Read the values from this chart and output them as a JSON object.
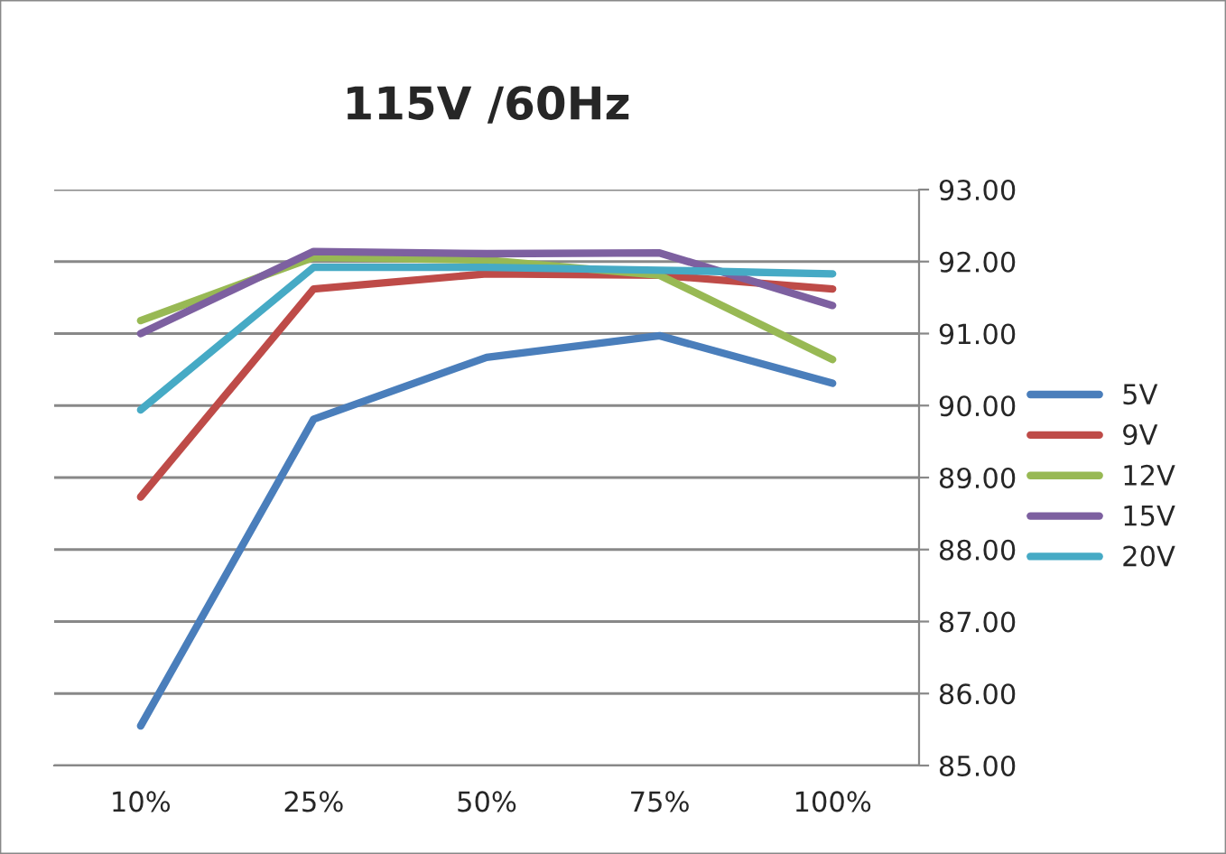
{
  "chart_data": {
    "type": "line",
    "title": "115V /60Hz",
    "categories": [
      "10%",
      "25%",
      "50%",
      "75%",
      "100%"
    ],
    "series": [
      {
        "name": "5V",
        "color": "#4a7ebb",
        "values": [
          85.55,
          89.81,
          90.67,
          90.97,
          90.31
        ]
      },
      {
        "name": "9V",
        "color": "#be4b48",
        "values": [
          88.73,
          91.62,
          91.83,
          91.81,
          91.62
        ]
      },
      {
        "name": "12V",
        "color": "#98b954",
        "values": [
          91.18,
          92.06,
          92.02,
          91.81,
          90.64
        ]
      },
      {
        "name": "15V",
        "color": "#7d60a0",
        "values": [
          91.0,
          92.14,
          92.11,
          92.12,
          91.39
        ]
      },
      {
        "name": "20V",
        "color": "#46aac5",
        "values": [
          89.94,
          91.92,
          91.92,
          91.88,
          91.83
        ]
      }
    ],
    "ylim": [
      85,
      93
    ],
    "yticks": [
      {
        "value": 85,
        "label": "85.00"
      },
      {
        "value": 86,
        "label": "86.00"
      },
      {
        "value": 87,
        "label": "87.00"
      },
      {
        "value": 88,
        "label": "88.00"
      },
      {
        "value": 89,
        "label": "89.00"
      },
      {
        "value": 90,
        "label": "90.00"
      },
      {
        "value": 91,
        "label": "91.00"
      },
      {
        "value": 92,
        "label": "92.00"
      },
      {
        "value": 93,
        "label": "93.00"
      }
    ],
    "grid": "y",
    "legend": "right",
    "marker": "none",
    "line_style": "solid"
  }
}
